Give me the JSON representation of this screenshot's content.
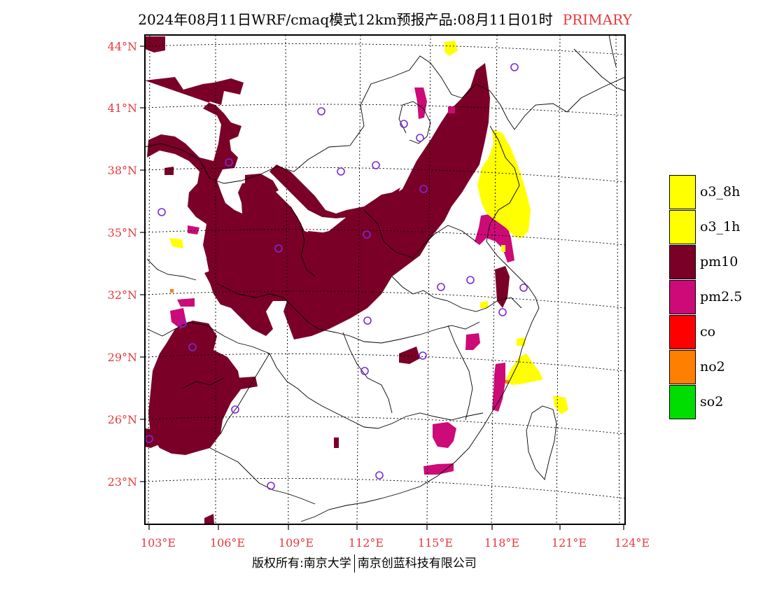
{
  "title": {
    "main": "2024年08月11日WRF/cmaq模式12km预报产品:08月11日01时",
    "tag": "PRIMARY"
  },
  "colors": {
    "pm10": "#7a0028",
    "pm25": "#cc0a78",
    "o3": "#ffff00",
    "co": "#ff0000",
    "no2": "#ff7f00",
    "so2": "#00dd00",
    "station": "#7a2ad8",
    "axis_label": "#e8383b"
  },
  "latitude_labels": [
    "44°N",
    "41°N",
    "38°N",
    "35°N",
    "32°N",
    "29°N",
    "26°N",
    "23°N"
  ],
  "longitude_labels": [
    "103°E",
    "106°E",
    "109°E",
    "112°E",
    "115°E",
    "118°E",
    "121°E",
    "124°E"
  ],
  "legend": [
    {
      "label": "o3_8h",
      "color": "#ffff00"
    },
    {
      "label": "o3_1h",
      "color": "#ffff00"
    },
    {
      "label": "pm10",
      "color": "#7a0028"
    },
    {
      "label": "pm2.5",
      "color": "#cc0a78"
    },
    {
      "label": "co",
      "color": "#ff0000"
    },
    {
      "label": "no2",
      "color": "#ff7f00"
    },
    {
      "label": "so2",
      "color": "#00dd00"
    }
  ],
  "footer": {
    "left": "版权所有:南京大学",
    "right": "南京创蓝科技有限公司"
  }
}
